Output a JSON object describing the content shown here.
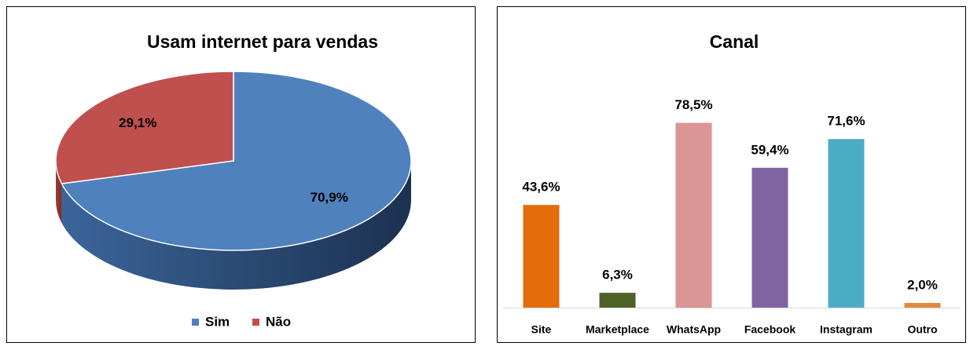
{
  "chart_data": [
    {
      "type": "pie",
      "title": "Usam internet para vendas",
      "categories": [
        "Sim",
        "Não"
      ],
      "values": [
        70.9,
        29.1
      ],
      "value_labels": [
        "70,9%",
        "29,1%"
      ],
      "colors": [
        "#4f81bd",
        "#c0504d"
      ],
      "legend": "bottom"
    },
    {
      "type": "bar",
      "title": "Canal",
      "categories": [
        "Site",
        "Marketplace",
        "WhatsApp",
        "Facebook",
        "Instagram",
        "Outro"
      ],
      "values": [
        43.6,
        6.3,
        78.5,
        59.4,
        71.6,
        2.0
      ],
      "value_labels": [
        "43,6%",
        "6,3%",
        "78,5%",
        "59,4%",
        "71,6%",
        "2,0%"
      ],
      "colors": [
        "#e46c0a",
        "#4f6228",
        "#d99694",
        "#8064a2",
        "#4bacc6",
        "#e3893f"
      ]
    }
  ]
}
